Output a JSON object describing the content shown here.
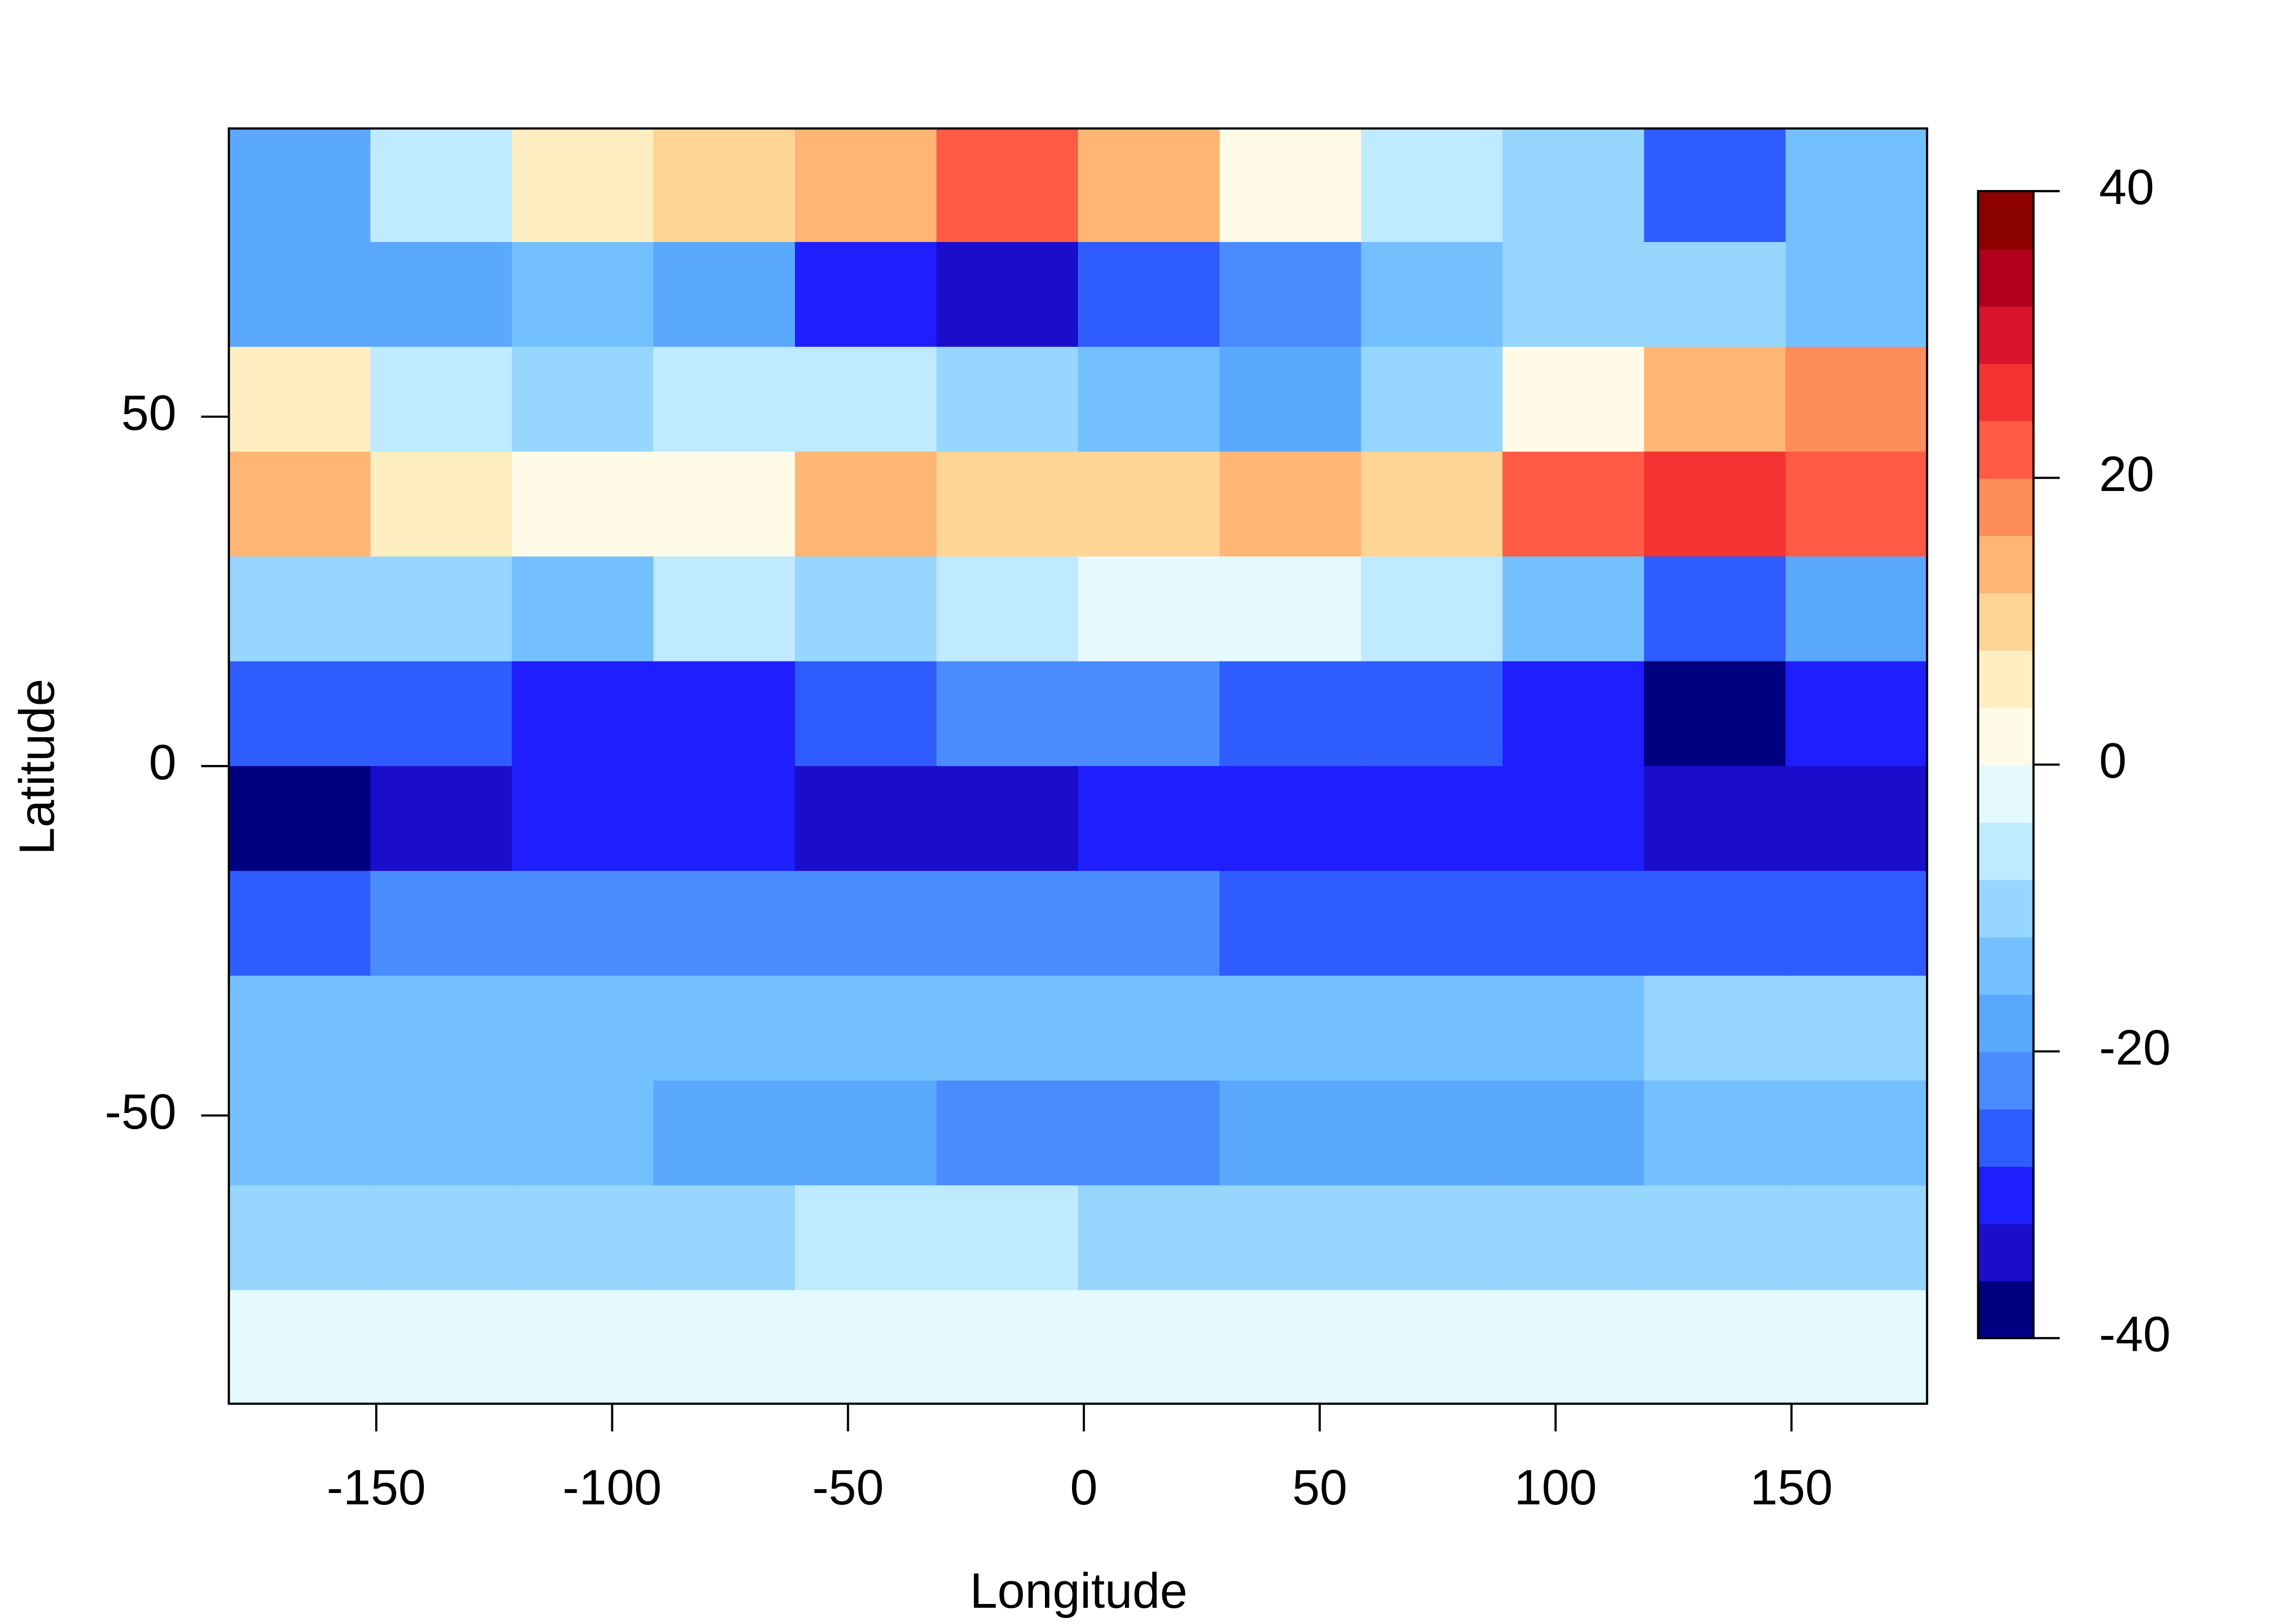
{
  "chart_data": {
    "type": "heatmap",
    "x_label": "Longitude",
    "y_label": "Latitude",
    "xlim": [
      -181.25,
      178.75
    ],
    "ylim": [
      -91.25,
      91.25
    ],
    "xticks": [
      -150,
      -100,
      -50,
      0,
      50,
      100,
      150
    ],
    "yticks": [
      -50,
      0,
      50
    ],
    "x": [
      -166.25,
      -136.25,
      -106.25,
      -76.25,
      -46.25,
      -16.25,
      13.75,
      43.75,
      73.75,
      103.75,
      133.75,
      163.75
    ],
    "y": [
      82.5,
      67.5,
      52.5,
      37.5,
      22.5,
      7.5,
      -7.5,
      -22.5,
      -37.5,
      -52.5,
      -67.5,
      -82.5
    ],
    "z": [
      [
        -20,
        -5,
        5,
        10,
        15,
        20,
        12,
        2,
        -5,
        -12,
        -25,
        -15
      ],
      [
        -20,
        -18,
        -15,
        -20,
        -30,
        -35,
        -25,
        -22,
        -15,
        -12,
        -10,
        -15
      ],
      [
        5,
        -5,
        -10,
        -5,
        -8,
        -10,
        -15,
        -18,
        -10,
        0,
        12,
        18
      ],
      [
        12,
        4,
        0,
        2,
        15,
        8,
        10,
        12,
        8,
        20,
        25,
        20
      ],
      [
        -10,
        -12,
        -14,
        -8,
        -10,
        -6,
        -3,
        -3,
        -6,
        -14,
        -25,
        -18
      ],
      [
        -28,
        -25,
        -30,
        -30,
        -28,
        -24,
        -22,
        -26,
        -28,
        -32,
        -38,
        -30
      ],
      [
        -38,
        -34,
        -30,
        -32,
        -35,
        -34,
        -32,
        -30,
        -30,
        -30,
        -34,
        -36
      ],
      [
        -26,
        -24,
        -24,
        -24,
        -24,
        -24,
        -24,
        -26,
        -25,
        -25,
        -25,
        -25
      ],
      [
        -14,
        -13,
        -15,
        -16,
        -15,
        -15,
        -15,
        -16,
        -16,
        -13,
        -12,
        -12
      ],
      [
        -16,
        -16,
        -16,
        -18,
        -20,
        -22,
        -22,
        -20,
        -18,
        -18,
        -16,
        -16
      ],
      [
        -10,
        -12,
        -12,
        -10,
        -8,
        -8,
        -10,
        -12,
        -12,
        -12,
        -10,
        -10
      ],
      [
        -3,
        -3,
        -3,
        -3,
        -3,
        -3,
        -3,
        -3,
        -3,
        -3,
        -3,
        -3
      ]
    ],
    "colorbar": {
      "lim": [
        -40,
        40
      ],
      "ticks": [
        -40,
        -20,
        0,
        20,
        40
      ],
      "colors": [
        "#000080",
        "#1a0dcc",
        "#1e1eff",
        "#2f5cff",
        "#4a8cff",
        "#5aa8ff",
        "#74c0ff",
        "#96d6ff",
        "#bfeaff",
        "#e4faff",
        "#fffbe6",
        "#ffeec2",
        "#ffd595",
        "#ffb574",
        "#ff8c5a",
        "#ff5a44",
        "#f53232",
        "#d9142a",
        "#b0001e",
        "#8b0000"
      ]
    }
  }
}
